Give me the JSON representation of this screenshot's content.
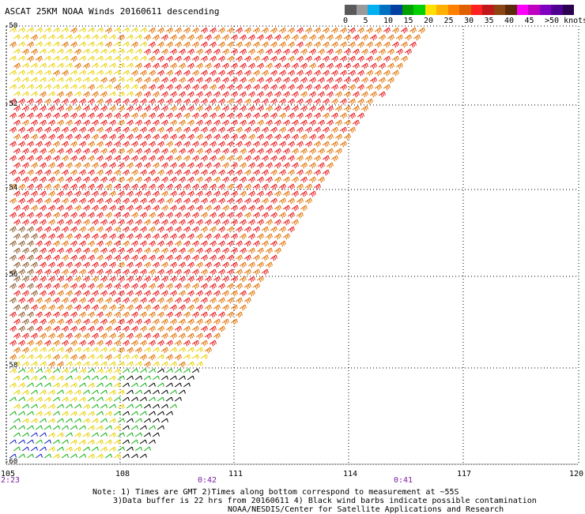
{
  "title": "ASCAT 25KM NOAA Winds 20160611 descending",
  "legend": {
    "swatches": [
      "#5a5a5a",
      "#9a9a9a",
      "#00b0f0",
      "#0070c0",
      "#0040a0",
      "#00a000",
      "#00d000",
      "#ffe000",
      "#ffb000",
      "#ff7f00",
      "#e06000",
      "#ff2020",
      "#c01818",
      "#8b4513",
      "#5a2a0a",
      "#ff00ff",
      "#c000c0",
      "#8000c0",
      "#500090",
      "#2a0050"
    ],
    "ticks": [
      "0",
      "5",
      "10",
      "15",
      "20",
      "25",
      "30",
      "35",
      "40",
      "45",
      ">50 knots"
    ]
  },
  "map": {
    "lat_labels": [
      "-50",
      "-52",
      "-54",
      "-56",
      "-58",
      "-60"
    ],
    "lon_labels": [
      "105",
      "108",
      "111",
      "114",
      "117",
      "120"
    ],
    "time_labels": [
      "2:23",
      "0:42",
      "0:41"
    ],
    "grid": true
  },
  "notes": {
    "line1": "Note: 1) Times are GMT 2)Times along bottom correspond to measurement at ~55S",
    "line2": "3)Data buffer is 22 hrs from 20160611 4) Black wind barbs indicate possible contamination",
    "line3": "NOAA/NESDIS/Center for Satellite Applications and Research"
  },
  "colors": {
    "yellow": "#e8d000",
    "orange": "#e07000",
    "red": "#e81818",
    "brown": "#8b5a2b",
    "green": "#10b010",
    "blue": "#1020c0",
    "black": "#000000",
    "grid": "#000000"
  }
}
